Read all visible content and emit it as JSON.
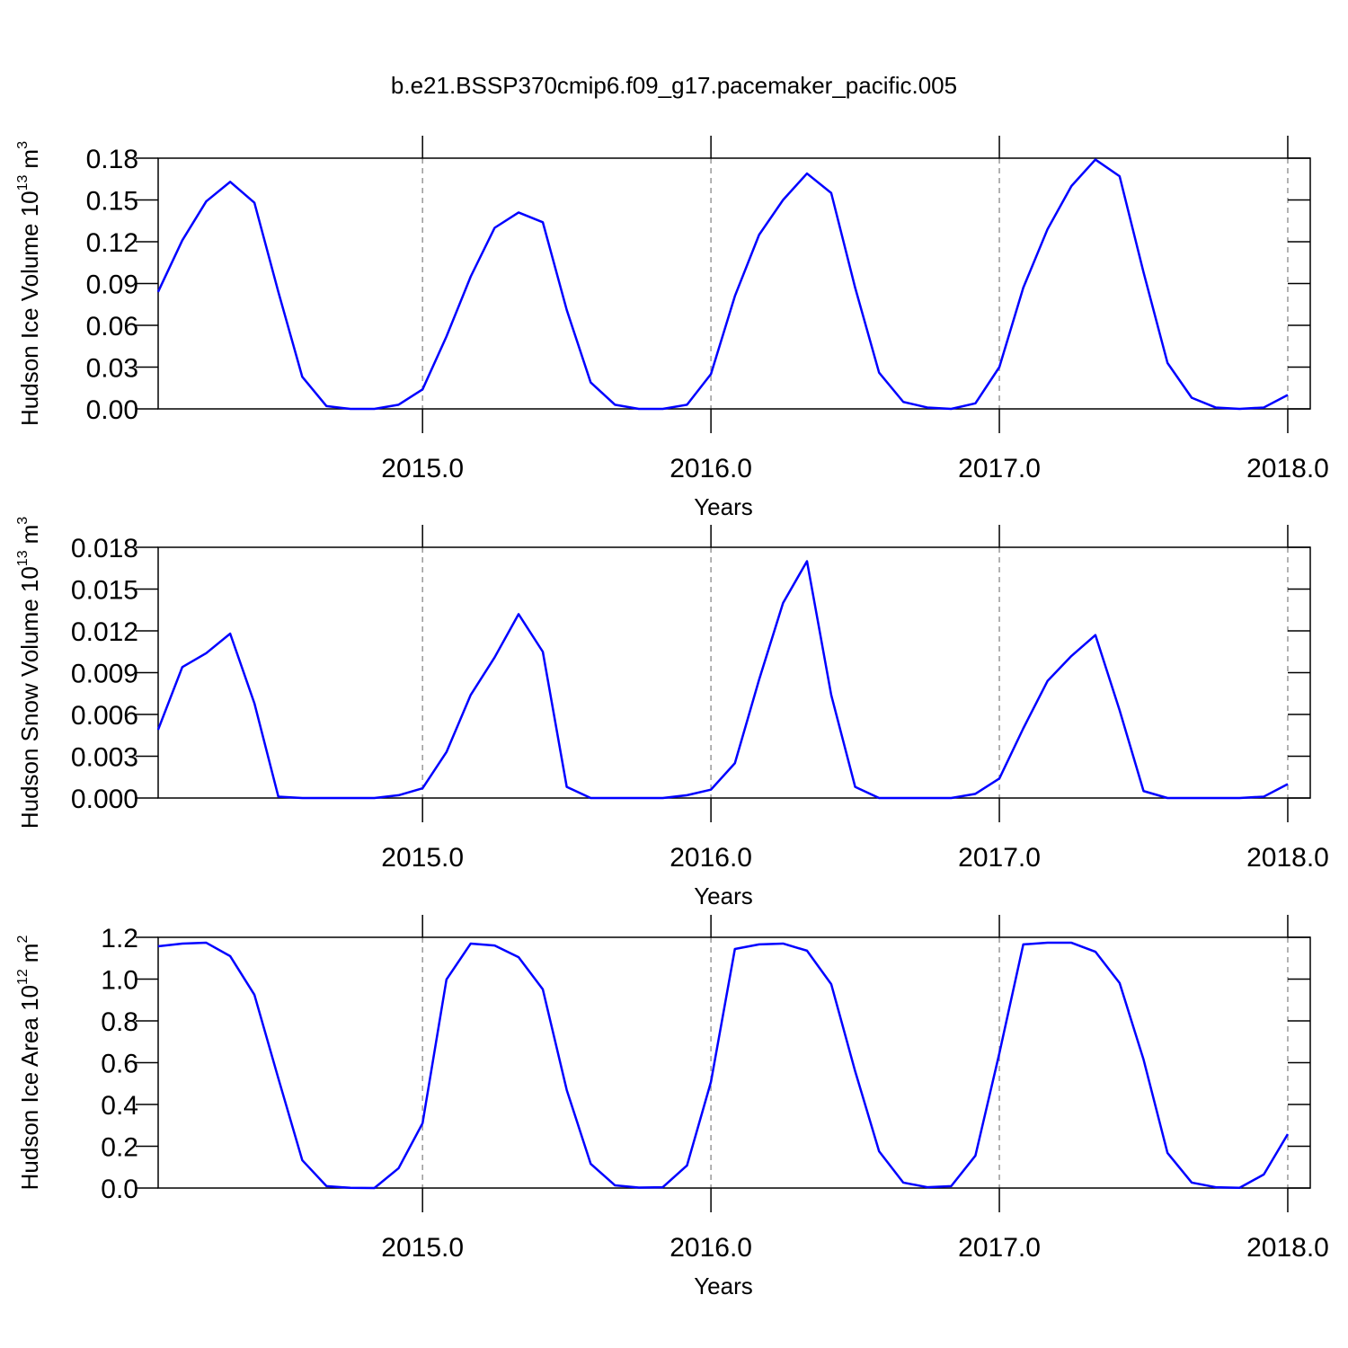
{
  "title": "b.e21.BSSP370cmip6.f09_g17.pacemaker_pacific.005",
  "chart_data": [
    {
      "type": "line",
      "ylabel": {
        "text": "Hudson Ice Volume 10",
        "exponent": "13",
        "unit": "m",
        "unit_exponent": "3"
      },
      "xlabel": "Years",
      "x": [
        2014.083,
        2014.167,
        2014.25,
        2014.333,
        2014.417,
        2014.5,
        2014.583,
        2014.667,
        2014.75,
        2014.833,
        2014.917,
        2015,
        2015.083,
        2015.167,
        2015.25,
        2015.333,
        2015.417,
        2015.5,
        2015.583,
        2015.667,
        2015.75,
        2015.833,
        2015.917,
        2016,
        2016.083,
        2016.167,
        2016.25,
        2016.333,
        2016.417,
        2016.5,
        2016.583,
        2016.667,
        2016.75,
        2016.833,
        2016.917,
        2017,
        2017.083,
        2017.167,
        2017.25,
        2017.333,
        2017.417,
        2017.5,
        2017.583,
        2017.667,
        2017.75,
        2017.833,
        2017.917,
        2018
      ],
      "series": [
        {
          "color": "#0000ff",
          "values": [
            0.084,
            0.121,
            0.149,
            0.163,
            0.148,
            0.084,
            0.023,
            0.002,
            0.0,
            0.0,
            0.003,
            0.014,
            0.052,
            0.095,
            0.13,
            0.141,
            0.134,
            0.071,
            0.019,
            0.003,
            0.0,
            0.0,
            0.003,
            0.025,
            0.081,
            0.125,
            0.15,
            0.169,
            0.155,
            0.087,
            0.026,
            0.005,
            0.001,
            0.0,
            0.004,
            0.03,
            0.087,
            0.129,
            0.16,
            0.179,
            0.167,
            0.098,
            0.033,
            0.008,
            0.001,
            0.0,
            0.001,
            0.01
          ]
        }
      ],
      "xlim": [
        2014.0833,
        2018.078
      ],
      "xticks": [
        {
          "value": 2015,
          "label": "2015.0"
        },
        {
          "value": 2016,
          "label": "2016.0"
        },
        {
          "value": 2017,
          "label": "2017.0"
        },
        {
          "value": 2018,
          "label": "2018.0"
        }
      ],
      "ylim": [
        0,
        0.18
      ],
      "yticks": [
        {
          "value": 0,
          "label": "0.00"
        },
        0.03,
        0.06,
        0.09,
        0.12,
        0.15,
        0.18
      ],
      "grid": "x"
    },
    {
      "type": "line",
      "ylabel": {
        "text": "Hudson Snow Volume 10",
        "exponent": "13",
        "unit": "m",
        "unit_exponent": "3"
      },
      "xlabel": "Years",
      "x": [
        2014.083,
        2014.167,
        2014.25,
        2014.333,
        2014.417,
        2014.5,
        2014.583,
        2014.667,
        2014.75,
        2014.833,
        2014.917,
        2015,
        2015.083,
        2015.167,
        2015.25,
        2015.333,
        2015.417,
        2015.5,
        2015.583,
        2015.667,
        2015.75,
        2015.833,
        2015.917,
        2016,
        2016.083,
        2016.167,
        2016.25,
        2016.333,
        2016.417,
        2016.5,
        2016.583,
        2016.667,
        2016.75,
        2016.833,
        2016.917,
        2017,
        2017.083,
        2017.167,
        2017.25,
        2017.333,
        2017.417,
        2017.5,
        2017.583,
        2017.667,
        2017.75,
        2017.833,
        2017.917,
        2018
      ],
      "series": [
        {
          "color": "#0000ff",
          "values": [
            0.0049,
            0.0094,
            0.0104,
            0.0118,
            0.0068,
            0.0001,
            0.0,
            0.0,
            0.0,
            0.0,
            0.0002,
            0.0007,
            0.0033,
            0.0074,
            0.0101,
            0.0132,
            0.0105,
            0.0008,
            0.0,
            0.0,
            0.0,
            0.0,
            0.0002,
            0.0006,
            0.0025,
            0.0085,
            0.014,
            0.017,
            0.0074,
            0.0008,
            0.0,
            0.0,
            0.0,
            0.0,
            0.0003,
            0.0014,
            0.005,
            0.0084,
            0.0102,
            0.0117,
            0.0063,
            0.0005,
            0.0,
            0.0,
            0.0,
            0.0,
            0.0001,
            0.001
          ]
        }
      ],
      "xlim": [
        2014.0833,
        2018.078
      ],
      "xticks": [
        {
          "value": 2015,
          "label": "2015.0"
        },
        {
          "value": 2016,
          "label": "2016.0"
        },
        {
          "value": 2017,
          "label": "2017.0"
        },
        {
          "value": 2018,
          "label": "2018.0"
        }
      ],
      "ylim": [
        0,
        0.018
      ],
      "yticks": [
        {
          "value": 0,
          "label": "0.000"
        },
        0.003,
        0.006,
        0.009,
        0.012,
        0.015,
        0.018
      ],
      "grid": "x"
    },
    {
      "type": "line",
      "ylabel": {
        "text": "Hudson Ice Area 10",
        "exponent": "12",
        "unit": "m",
        "unit_exponent": "2"
      },
      "xlabel": "Years",
      "x": [
        2014.083,
        2014.167,
        2014.25,
        2014.333,
        2014.417,
        2014.5,
        2014.583,
        2014.667,
        2014.75,
        2014.833,
        2014.917,
        2015,
        2015.083,
        2015.167,
        2015.25,
        2015.333,
        2015.417,
        2015.5,
        2015.583,
        2015.667,
        2015.75,
        2015.833,
        2015.917,
        2016,
        2016.083,
        2016.167,
        2016.25,
        2016.333,
        2016.417,
        2016.5,
        2016.583,
        2016.667,
        2016.75,
        2016.833,
        2016.917,
        2017,
        2017.083,
        2017.167,
        2017.25,
        2017.333,
        2017.417,
        2017.5,
        2017.583,
        2017.667,
        2017.75,
        2017.833,
        2017.917,
        2018
      ],
      "series": [
        {
          "color": "#0000ff",
          "values": [
            1.157,
            1.17,
            1.174,
            1.11,
            0.925,
            0.525,
            0.133,
            0.009,
            0.001,
            0.0,
            0.095,
            0.31,
            0.998,
            1.17,
            1.161,
            1.105,
            0.951,
            0.469,
            0.116,
            0.013,
            0.002,
            0.004,
            0.108,
            0.508,
            1.144,
            1.166,
            1.17,
            1.136,
            0.976,
            0.559,
            0.176,
            0.026,
            0.004,
            0.009,
            0.155,
            0.645,
            1.166,
            1.174,
            1.174,
            1.131,
            0.981,
            0.615,
            0.168,
            0.026,
            0.004,
            0.001,
            0.065,
            0.258
          ]
        }
      ],
      "xlim": [
        2014.0833,
        2018.078
      ],
      "xticks": [
        {
          "value": 2015,
          "label": "2015.0"
        },
        {
          "value": 2016,
          "label": "2016.0"
        },
        {
          "value": 2017,
          "label": "2017.0"
        },
        {
          "value": 2018,
          "label": "2018.0"
        }
      ],
      "ylim": [
        0,
        1.2
      ],
      "yticks": [
        {
          "value": 0,
          "label": "0.0"
        },
        0.2,
        0.4,
        0.6,
        0.8,
        {
          "value": 1,
          "label": "1.0"
        },
        1.2
      ],
      "grid": "x"
    }
  ]
}
